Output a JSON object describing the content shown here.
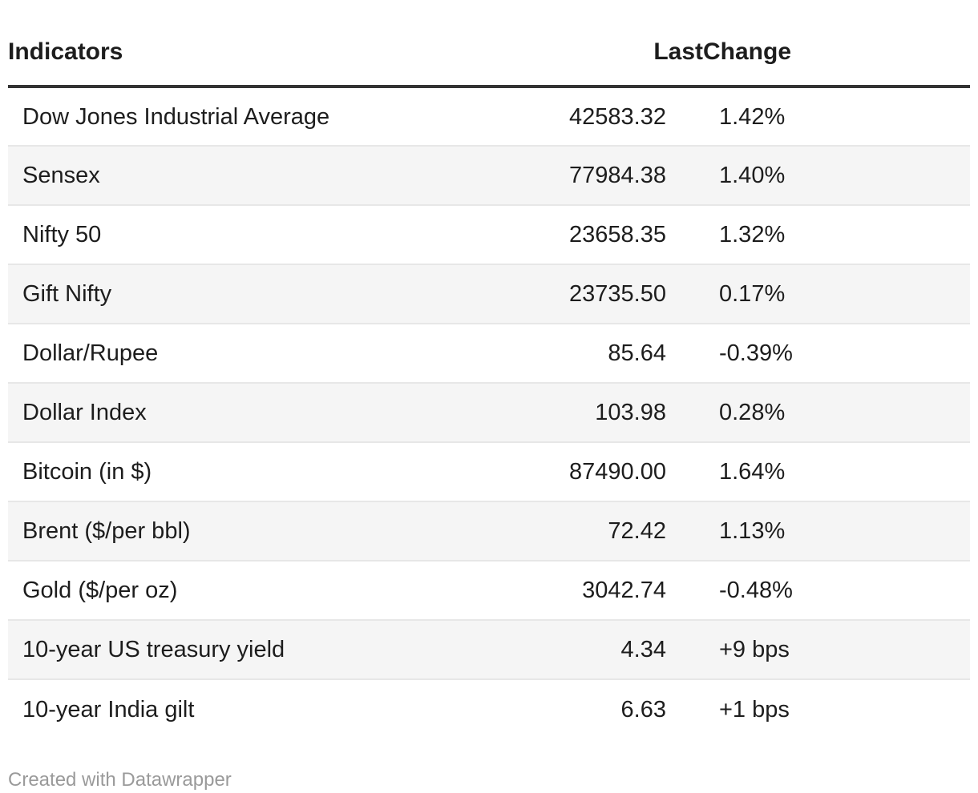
{
  "chart_data": {
    "type": "table",
    "title": "",
    "columns": [
      "Indicators",
      "Last",
      "Change"
    ],
    "rows": [
      [
        "Dow Jones Industrial Average",
        "42583.32",
        "1.42%"
      ],
      [
        "Sensex",
        "77984.38",
        "1.40%"
      ],
      [
        "Nifty 50",
        "23658.35",
        "1.32%"
      ],
      [
        "Gift Nifty",
        "23735.50",
        "0.17%"
      ],
      [
        "Dollar/Rupee",
        "85.64",
        "-0.39%"
      ],
      [
        "Dollar Index",
        "103.98",
        "0.28%"
      ],
      [
        "Bitcoin (in $)",
        "87490.00",
        "1.64%"
      ],
      [
        "Brent ($/per bbl)",
        "72.42",
        "1.13%"
      ],
      [
        "Gold ($/per oz)",
        "3042.74",
        "-0.48%"
      ],
      [
        "10-year US treasury yield",
        "4.34",
        "+9 bps"
      ],
      [
        "10-year India gilt",
        "6.63",
        "+1 bps"
      ]
    ],
    "layout": {
      "striped_rows": "even rows shaded",
      "header_border": "thick dark rule under header",
      "last_column_align": "right",
      "change_column_align": "left"
    }
  },
  "table": {
    "headers": {
      "indicator": "Indicators",
      "last": "Last",
      "change": "Change"
    },
    "rows": [
      {
        "indicator": "Dow Jones Industrial Average",
        "last": "42583.32",
        "change": "1.42%"
      },
      {
        "indicator": "Sensex",
        "last": "77984.38",
        "change": "1.40%"
      },
      {
        "indicator": "Nifty 50",
        "last": "23658.35",
        "change": "1.32%"
      },
      {
        "indicator": "Gift Nifty",
        "last": "23735.50",
        "change": "0.17%"
      },
      {
        "indicator": "Dollar/Rupee",
        "last": "85.64",
        "change": "-0.39%"
      },
      {
        "indicator": "Dollar Index",
        "last": "103.98",
        "change": "0.28%"
      },
      {
        "indicator": "Bitcoin (in $)",
        "last": "87490.00",
        "change": "1.64%"
      },
      {
        "indicator": "Brent ($/per bbl)",
        "last": "72.42",
        "change": "1.13%"
      },
      {
        "indicator": "Gold ($/per oz)",
        "last": "3042.74",
        "change": "-0.48%"
      },
      {
        "indicator": "10-year US treasury yield",
        "last": "4.34",
        "change": "+9 bps"
      },
      {
        "indicator": "10-year India gilt",
        "last": "6.63",
        "change": "+1 bps"
      }
    ]
  },
  "footer": {
    "credit": "Created with Datawrapper"
  },
  "colors": {
    "text": "#1d1d1d",
    "stripe": "#f5f5f5",
    "separator": "#e7e7e7",
    "header_border": "#333333",
    "credit_text": "#9a9a9a",
    "background": "#ffffff"
  }
}
